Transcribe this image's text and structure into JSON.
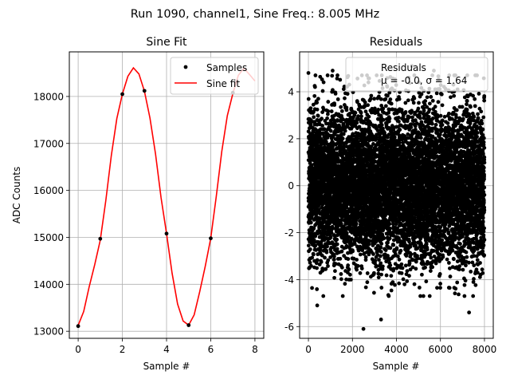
{
  "figure": {
    "suptitle": "Run 1090, channel1, Sine Freq.: 8.005 MHz"
  },
  "chart_data": [
    {
      "type": "line",
      "title": "Sine Fit",
      "xlabel": "Sample #",
      "ylabel": "ADC Counts",
      "xlim": [
        -0.4,
        8.4
      ],
      "ylim": [
        12850,
        18950
      ],
      "xticks": [
        0,
        2,
        4,
        6,
        8
      ],
      "yticks": [
        13000,
        14000,
        15000,
        16000,
        17000,
        18000
      ],
      "grid": true,
      "legend_position": "top-right",
      "series": [
        {
          "name": "Samples",
          "kind": "scatter",
          "color": "#000000",
          "x": [
            0,
            1,
            2,
            3,
            4,
            5,
            6,
            7
          ],
          "y": [
            13110,
            14970,
            18050,
            18120,
            15080,
            13130,
            14980,
            18080
          ]
        },
        {
          "name": "Sine fit",
          "kind": "line",
          "color": "#ff0000",
          "x": [
            0.0,
            0.25,
            0.5,
            0.75,
            1.0,
            1.25,
            1.5,
            1.75,
            2.0,
            2.25,
            2.5,
            2.75,
            3.0,
            3.25,
            3.5,
            3.75,
            4.0,
            4.25,
            4.5,
            4.75,
            5.0,
            5.25,
            5.5,
            5.75,
            6.0,
            6.25,
            6.5,
            6.75,
            7.0,
            7.25,
            7.5,
            7.75,
            8.0
          ],
          "y": [
            13125,
            13420,
            13950,
            14420,
            14940,
            15780,
            16740,
            17530,
            18050,
            18430,
            18610,
            18480,
            18110,
            17540,
            16780,
            15850,
            15080,
            14240,
            13580,
            13220,
            13130,
            13350,
            13840,
            14380,
            14980,
            15870,
            16830,
            17590,
            18060,
            18450,
            18600,
            18470,
            18330
          ]
        }
      ]
    },
    {
      "type": "scatter",
      "title": "Residuals",
      "xlabel": "Sample #",
      "ylabel": "",
      "xlim": [
        -400,
        8400
      ],
      "ylim": [
        -6.5,
        5.7
      ],
      "xticks": [
        0,
        2000,
        4000,
        6000,
        8000
      ],
      "yticks": [
        -6,
        -4,
        -2,
        0,
        2,
        4
      ],
      "grid": true,
      "legend_position": "top-right",
      "legend_label": "Residuals",
      "stats_label": "μ = -0.0, σ = 1.64",
      "n_points": 8000,
      "mean": 0.0,
      "std": 1.64,
      "extrema": [
        {
          "x": 2500,
          "y": -6.1
        },
        {
          "x": 3300,
          "y": -5.7
        },
        {
          "x": 400,
          "y": -5.1
        },
        {
          "x": 7300,
          "y": -5.4
        },
        {
          "x": 1100,
          "y": 4.9
        },
        {
          "x": 4700,
          "y": 5.1
        },
        {
          "x": 0,
          "y": 4.8
        },
        {
          "x": 5700,
          "y": 4.9
        }
      ],
      "color": "#000000"
    }
  ]
}
